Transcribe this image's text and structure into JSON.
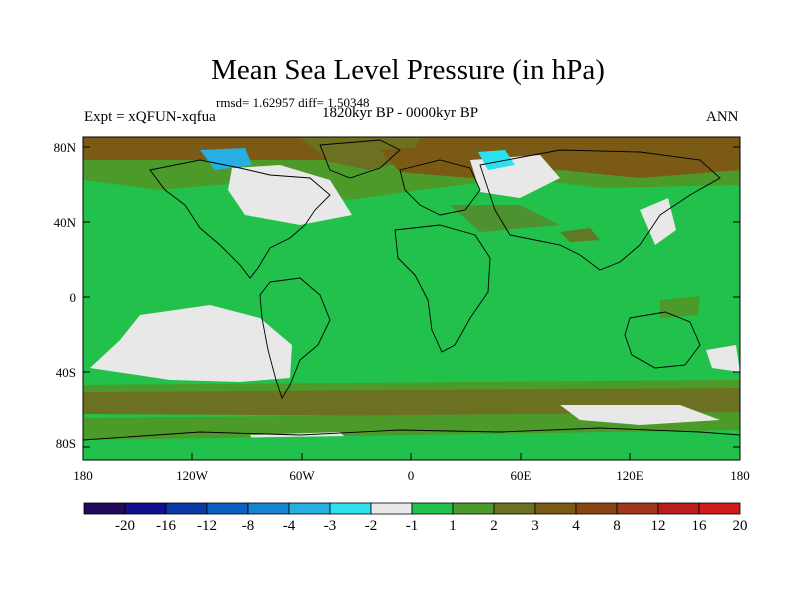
{
  "figure": {
    "title": "Mean Sea Level Pressure (in hPa)",
    "stats_text": "rmsd= 1.62957 diff= 1.50348",
    "left_label": "Expt = xQFUN-xqfua",
    "center_label": "1820kyr BP - 0000kyr BP",
    "right_label": "ANN"
  },
  "axes": {
    "lat_ticks": [
      "80N",
      "40N",
      "0",
      "40S",
      "80S"
    ],
    "lat_values": [
      80,
      40,
      0,
      -40,
      -80
    ],
    "lon_ticks": [
      "180",
      "120W",
      "60W",
      "0",
      "60E",
      "120E",
      "180"
    ],
    "lon_values": [
      -180,
      -120,
      -60,
      0,
      60,
      120,
      180
    ]
  },
  "colorbar": {
    "colors": [
      "#230b5c",
      "#0f0f90",
      "#0a3aa8",
      "#0c5fc2",
      "#1684d0",
      "#27afe3",
      "#2ce0f0",
      "#e8e8e8",
      "#21c14b",
      "#4c9a2a",
      "#6b7120",
      "#7a5a14",
      "#8b4513",
      "#a0361a",
      "#b81e1e",
      "#d21b1b"
    ],
    "labels": [
      "-20",
      "-16",
      "-12",
      "-8",
      "-4",
      "-3",
      "-2",
      "-1",
      "1",
      "2",
      "3",
      "4",
      "8",
      "12",
      "16",
      "20"
    ]
  },
  "map_colors": {
    "ocean_base": "#21c14b",
    "olive": "#4c9a2a",
    "brown": "#7a5a14",
    "light": "#e8e8e8",
    "cyan": "#2ce0f0",
    "blue": "#27afe3",
    "red_brown": "#8b4513"
  }
}
